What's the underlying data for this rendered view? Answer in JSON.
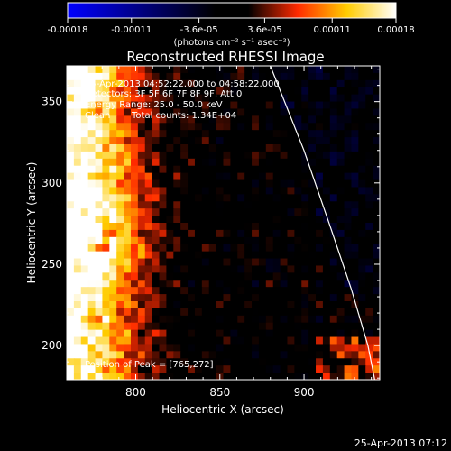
{
  "colorbar": {
    "tick_labels": [
      "-0.00018",
      "-0.00011",
      "-3.6e-05",
      "3.6e-05",
      "0.00011",
      "0.00018"
    ],
    "tick_values": [
      -0.00018,
      -0.00011,
      -3.6e-05,
      3.6e-05,
      0.00011,
      0.00018
    ],
    "range": [
      -0.00018,
      0.00018
    ],
    "units_label": "(photons cm⁻² s⁻¹ asec⁻²)",
    "colors": [
      "#0000ff",
      "#000000",
      "#ff0000",
      "#ffff00",
      "#ffffff"
    ]
  },
  "chart_data": {
    "type": "heatmap",
    "title": "Reconstructed RHESSI Image",
    "xlabel": "Heliocentric X (arcsec)",
    "ylabel": "Heliocentric Y (arcsec)",
    "xlim": [
      759,
      945
    ],
    "ylim": [
      179,
      372
    ],
    "x_ticks": [
      800,
      850,
      900
    ],
    "y_ticks": [
      200,
      250,
      300,
      350
    ],
    "peak_position": [
      765,
      272
    ],
    "limb_curve": [
      [
        880,
        372
      ],
      [
        900,
        320
      ],
      [
        915,
        275
      ],
      [
        928,
        235
      ],
      [
        938,
        200
      ],
      [
        942,
        179
      ]
    ],
    "annotations": {
      "time_range": "25-Apr-2013 04:52:22.000 to 04:58:22.000",
      "detectors": "Detectors: 3F 5F 6F 7F 8F 9F, Att 0",
      "energy_range": "Energy Range: 25.0 - 50.0 keV",
      "method": "Clean",
      "total_counts": "Total counts: 1.34E+04",
      "peak_label": "Position of Peak = [765,272]"
    }
  },
  "footer": {
    "timestamp": "25-Apr-2013 07:12"
  }
}
